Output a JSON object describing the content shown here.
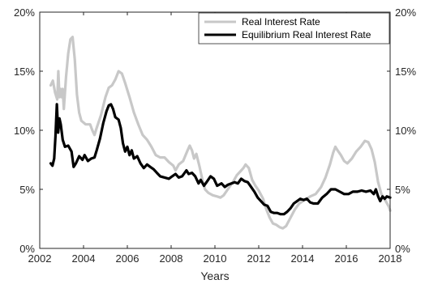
{
  "chart_data": {
    "type": "line",
    "title": "",
    "xlabel": "Years",
    "ylabel": "",
    "xlim": [
      2002,
      2018
    ],
    "ylim": [
      0,
      20
    ],
    "x_ticks": [
      2002,
      2004,
      2006,
      2008,
      2010,
      2012,
      2014,
      2016,
      2018
    ],
    "x_tick_labels": [
      "2002",
      "2004",
      "2006",
      "2008",
      "2010",
      "2012",
      "2014",
      "2016",
      "2018"
    ],
    "y_ticks": [
      0,
      5,
      10,
      15,
      20
    ],
    "y_tick_labels": [
      "0%",
      "5%",
      "10%",
      "15%",
      "20%"
    ],
    "y_ticks_right": true,
    "grid": false,
    "legend_position": "top-right",
    "series": [
      {
        "name": "Real Interest Rate",
        "color": "#c8c8c8",
        "points": [
          [
            2002.5,
            13.8
          ],
          [
            2002.6,
            14.2
          ],
          [
            2002.7,
            13.2
          ],
          [
            2002.8,
            12.6
          ],
          [
            2002.85,
            15.0
          ],
          [
            2002.9,
            12.8
          ],
          [
            2002.95,
            13.5
          ],
          [
            2003.0,
            12.8
          ],
          [
            2003.05,
            13.5
          ],
          [
            2003.1,
            11.8
          ],
          [
            2003.2,
            14.5
          ],
          [
            2003.3,
            16.5
          ],
          [
            2003.4,
            17.7
          ],
          [
            2003.5,
            17.9
          ],
          [
            2003.6,
            16.0
          ],
          [
            2003.7,
            13.0
          ],
          [
            2003.8,
            11.5
          ],
          [
            2003.9,
            10.8
          ],
          [
            2004.1,
            10.5
          ],
          [
            2004.3,
            10.5
          ],
          [
            2004.4,
            10.0
          ],
          [
            2004.5,
            9.6
          ],
          [
            2004.6,
            10.2
          ],
          [
            2004.8,
            11.3
          ],
          [
            2005.0,
            12.8
          ],
          [
            2005.15,
            13.6
          ],
          [
            2005.3,
            13.8
          ],
          [
            2005.45,
            14.3
          ],
          [
            2005.6,
            15.0
          ],
          [
            2005.75,
            14.8
          ],
          [
            2005.9,
            14.0
          ],
          [
            2006.1,
            12.8
          ],
          [
            2006.3,
            11.5
          ],
          [
            2006.5,
            10.5
          ],
          [
            2006.7,
            9.6
          ],
          [
            2006.9,
            9.2
          ],
          [
            2007.1,
            8.6
          ],
          [
            2007.3,
            7.9
          ],
          [
            2007.5,
            7.7
          ],
          [
            2007.7,
            7.7
          ],
          [
            2007.9,
            7.3
          ],
          [
            2008.1,
            7.0
          ],
          [
            2008.2,
            6.6
          ],
          [
            2008.35,
            7.1
          ],
          [
            2008.55,
            7.4
          ],
          [
            2008.75,
            8.3
          ],
          [
            2008.85,
            8.7
          ],
          [
            2008.95,
            8.3
          ],
          [
            2009.05,
            7.6
          ],
          [
            2009.15,
            8.0
          ],
          [
            2009.3,
            6.9
          ],
          [
            2009.45,
            5.6
          ],
          [
            2009.55,
            5.0
          ],
          [
            2009.7,
            4.7
          ],
          [
            2009.9,
            4.5
          ],
          [
            2010.1,
            4.4
          ],
          [
            2010.25,
            4.3
          ],
          [
            2010.4,
            4.5
          ],
          [
            2010.55,
            4.9
          ],
          [
            2010.7,
            5.3
          ],
          [
            2010.85,
            5.7
          ],
          [
            2011.0,
            6.2
          ],
          [
            2011.15,
            6.5
          ],
          [
            2011.3,
            6.8
          ],
          [
            2011.4,
            7.1
          ],
          [
            2011.55,
            6.8
          ],
          [
            2011.7,
            5.8
          ],
          [
            2011.85,
            5.3
          ],
          [
            2012.0,
            4.9
          ],
          [
            2012.2,
            4.2
          ],
          [
            2012.35,
            3.3
          ],
          [
            2012.5,
            2.6
          ],
          [
            2012.65,
            2.1
          ],
          [
            2012.8,
            2.0
          ],
          [
            2012.95,
            1.8
          ],
          [
            2013.1,
            1.7
          ],
          [
            2013.25,
            1.9
          ],
          [
            2013.45,
            2.6
          ],
          [
            2013.65,
            3.3
          ],
          [
            2013.85,
            3.8
          ],
          [
            2014.1,
            4.1
          ],
          [
            2014.35,
            4.4
          ],
          [
            2014.6,
            4.6
          ],
          [
            2014.85,
            5.2
          ],
          [
            2015.05,
            6.0
          ],
          [
            2015.25,
            7.1
          ],
          [
            2015.4,
            8.1
          ],
          [
            2015.5,
            8.6
          ],
          [
            2015.6,
            8.3
          ],
          [
            2015.75,
            7.9
          ],
          [
            2015.9,
            7.4
          ],
          [
            2016.05,
            7.2
          ],
          [
            2016.25,
            7.6
          ],
          [
            2016.45,
            8.2
          ],
          [
            2016.65,
            8.6
          ],
          [
            2016.85,
            9.1
          ],
          [
            2017.0,
            9.0
          ],
          [
            2017.15,
            8.4
          ],
          [
            2017.3,
            7.3
          ],
          [
            2017.45,
            5.6
          ],
          [
            2017.6,
            4.6
          ],
          [
            2017.8,
            4.0
          ],
          [
            2017.95,
            3.5
          ],
          [
            2018.0,
            3.2
          ]
        ]
      },
      {
        "name": "Equilibrium Real Interest Rate",
        "color": "#000000",
        "points": [
          [
            2002.5,
            7.2
          ],
          [
            2002.58,
            7.0
          ],
          [
            2002.66,
            7.6
          ],
          [
            2002.72,
            9.5
          ],
          [
            2002.78,
            12.2
          ],
          [
            2002.84,
            9.8
          ],
          [
            2002.9,
            11.0
          ],
          [
            2002.96,
            10.5
          ],
          [
            2003.05,
            9.2
          ],
          [
            2003.15,
            8.6
          ],
          [
            2003.3,
            8.7
          ],
          [
            2003.45,
            8.2
          ],
          [
            2003.55,
            6.9
          ],
          [
            2003.65,
            7.2
          ],
          [
            2003.8,
            7.8
          ],
          [
            2003.95,
            7.5
          ],
          [
            2004.05,
            7.9
          ],
          [
            2004.2,
            7.4
          ],
          [
            2004.35,
            7.6
          ],
          [
            2004.5,
            7.7
          ],
          [
            2004.6,
            8.3
          ],
          [
            2004.75,
            9.3
          ],
          [
            2004.9,
            10.6
          ],
          [
            2005.05,
            11.6
          ],
          [
            2005.15,
            12.1
          ],
          [
            2005.25,
            12.2
          ],
          [
            2005.35,
            11.8
          ],
          [
            2005.45,
            11.1
          ],
          [
            2005.6,
            10.9
          ],
          [
            2005.7,
            10.2
          ],
          [
            2005.8,
            8.9
          ],
          [
            2005.9,
            8.2
          ],
          [
            2006.0,
            8.6
          ],
          [
            2006.1,
            7.9
          ],
          [
            2006.2,
            8.3
          ],
          [
            2006.3,
            7.6
          ],
          [
            2006.45,
            7.8
          ],
          [
            2006.6,
            7.2
          ],
          [
            2006.75,
            6.8
          ],
          [
            2006.9,
            7.1
          ],
          [
            2007.05,
            6.9
          ],
          [
            2007.2,
            6.7
          ],
          [
            2007.35,
            6.4
          ],
          [
            2007.5,
            6.1
          ],
          [
            2007.7,
            6.0
          ],
          [
            2007.9,
            5.9
          ],
          [
            2008.05,
            6.1
          ],
          [
            2008.2,
            6.3
          ],
          [
            2008.35,
            6.0
          ],
          [
            2008.5,
            6.1
          ],
          [
            2008.7,
            6.6
          ],
          [
            2008.8,
            6.3
          ],
          [
            2008.95,
            6.4
          ],
          [
            2009.1,
            6.1
          ],
          [
            2009.25,
            5.5
          ],
          [
            2009.35,
            5.8
          ],
          [
            2009.5,
            5.3
          ],
          [
            2009.65,
            5.7
          ],
          [
            2009.8,
            6.1
          ],
          [
            2009.95,
            5.9
          ],
          [
            2010.1,
            5.3
          ],
          [
            2010.3,
            5.5
          ],
          [
            2010.45,
            5.2
          ],
          [
            2010.6,
            5.4
          ],
          [
            2010.75,
            5.5
          ],
          [
            2010.9,
            5.6
          ],
          [
            2011.05,
            5.5
          ],
          [
            2011.2,
            5.9
          ],
          [
            2011.35,
            5.7
          ],
          [
            2011.5,
            5.6
          ],
          [
            2011.65,
            5.2
          ],
          [
            2011.8,
            4.8
          ],
          [
            2011.95,
            4.3
          ],
          [
            2012.1,
            4.0
          ],
          [
            2012.25,
            3.7
          ],
          [
            2012.4,
            3.6
          ],
          [
            2012.55,
            3.1
          ],
          [
            2012.7,
            3.0
          ],
          [
            2012.85,
            3.0
          ],
          [
            2013.0,
            2.9
          ],
          [
            2013.15,
            2.9
          ],
          [
            2013.3,
            3.1
          ],
          [
            2013.45,
            3.4
          ],
          [
            2013.6,
            3.8
          ],
          [
            2013.75,
            4.0
          ],
          [
            2013.9,
            4.2
          ],
          [
            2014.05,
            4.1
          ],
          [
            2014.2,
            4.2
          ],
          [
            2014.35,
            3.9
          ],
          [
            2014.5,
            3.8
          ],
          [
            2014.7,
            3.8
          ],
          [
            2014.9,
            4.3
          ],
          [
            2015.1,
            4.6
          ],
          [
            2015.3,
            5.0
          ],
          [
            2015.5,
            5.0
          ],
          [
            2015.7,
            4.8
          ],
          [
            2015.9,
            4.6
          ],
          [
            2016.1,
            4.6
          ],
          [
            2016.3,
            4.8
          ],
          [
            2016.5,
            4.8
          ],
          [
            2016.7,
            4.9
          ],
          [
            2016.9,
            4.8
          ],
          [
            2017.1,
            4.9
          ],
          [
            2017.25,
            4.6
          ],
          [
            2017.35,
            5.0
          ],
          [
            2017.45,
            4.4
          ],
          [
            2017.55,
            4.0
          ],
          [
            2017.65,
            4.4
          ],
          [
            2017.75,
            4.2
          ],
          [
            2017.85,
            4.4
          ],
          [
            2018.0,
            4.3
          ]
        ]
      }
    ]
  }
}
